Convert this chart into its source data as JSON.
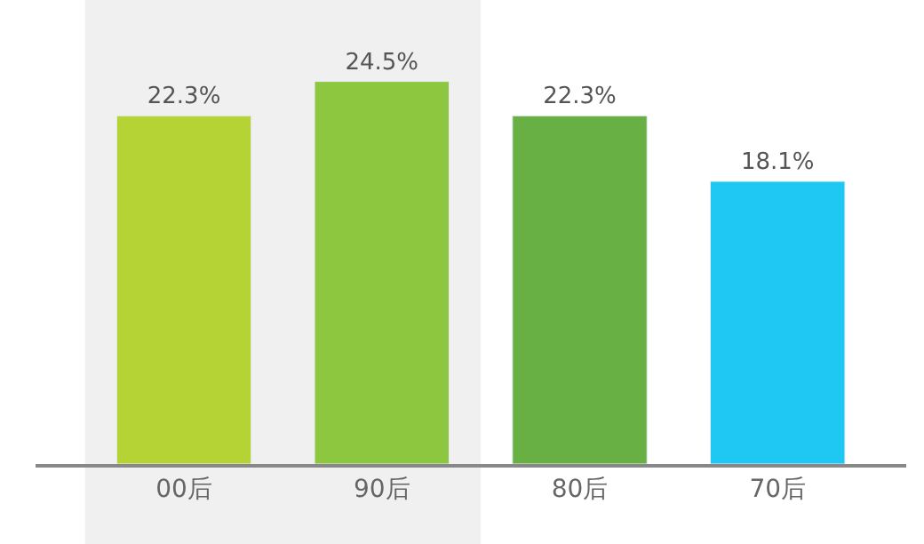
{
  "chart_data": {
    "type": "bar",
    "categories": [
      "00后",
      "90后",
      "80后",
      "70后"
    ],
    "values": [
      22.3,
      24.5,
      22.3,
      18.1
    ],
    "colors": [
      "#b5d334",
      "#8dc63f",
      "#68b044",
      "#1ec8f2"
    ],
    "data_labels": true,
    "value_labels": [
      "22.3%",
      "24.5%",
      "22.3%",
      "18.1%"
    ],
    "bands": [
      {
        "axis": "x",
        "from": "00后",
        "to": "90后",
        "color": "#f0f0f0"
      }
    ]
  }
}
